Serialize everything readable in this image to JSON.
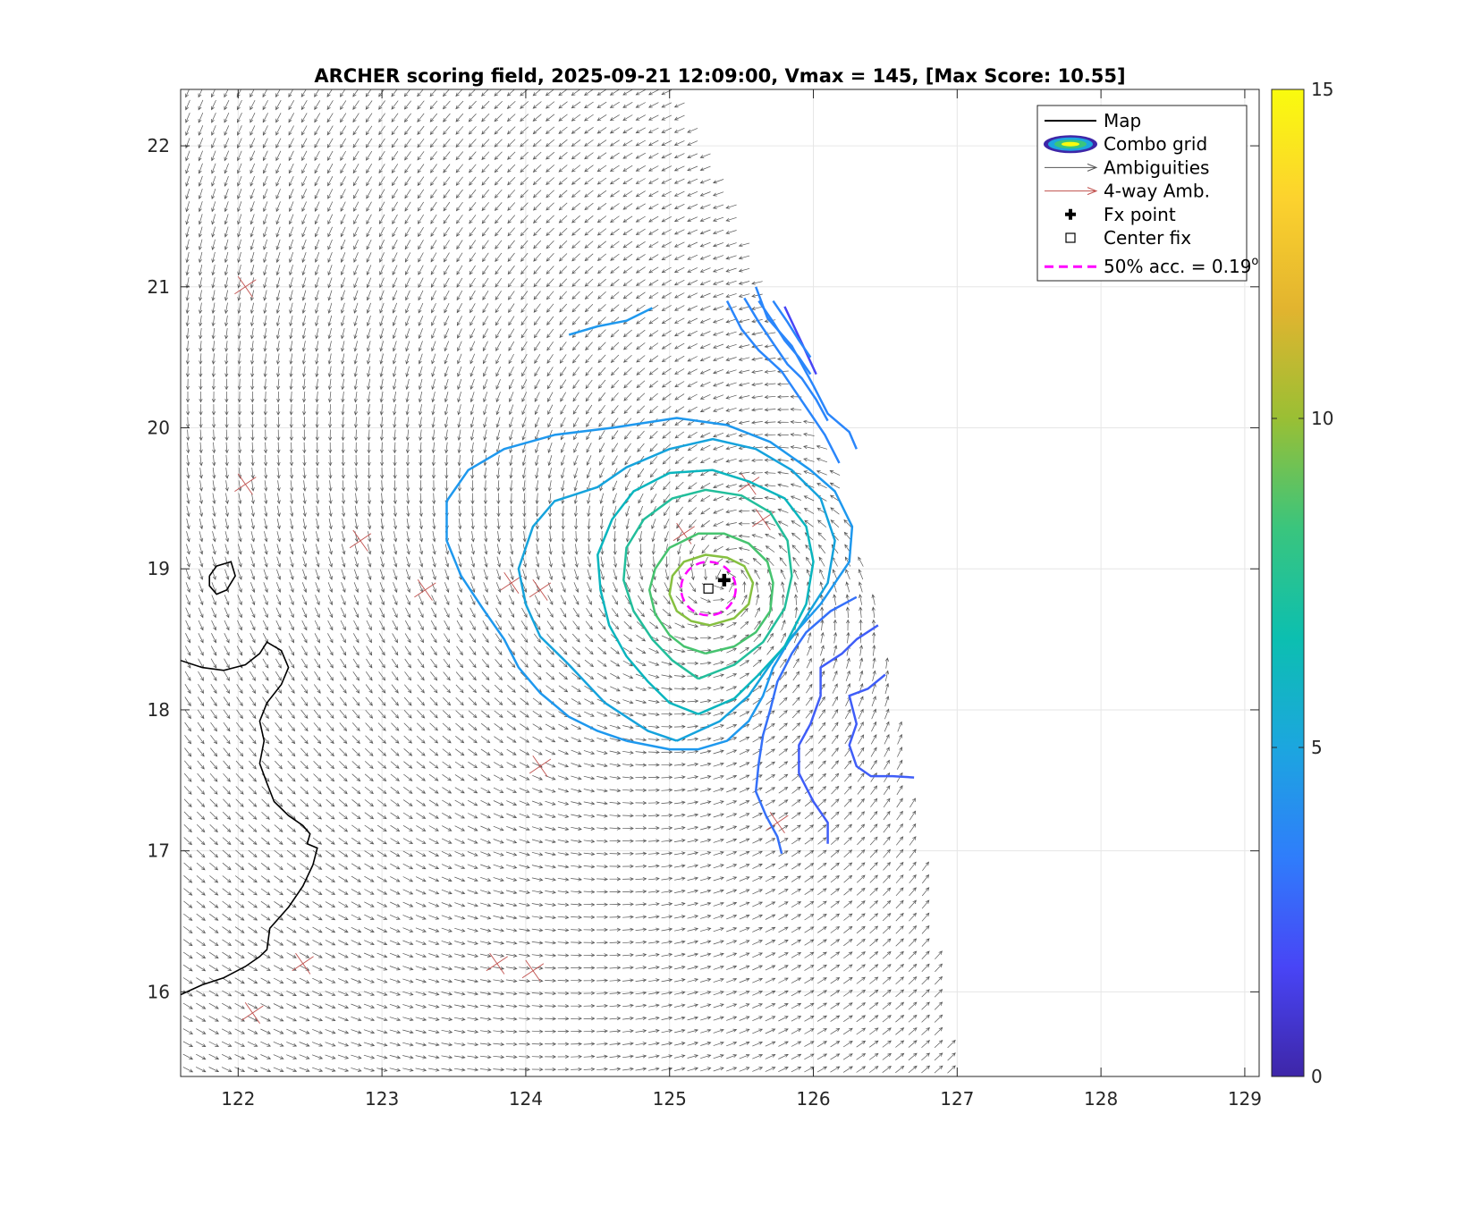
{
  "chart_data": {
    "type": "contour+quiver",
    "title": "ARCHER scoring field, 2025-09-21 12:09:00, Vmax = 145, [Max Score: 10.55]",
    "xlim": [
      121.6,
      129.1
    ],
    "ylim": [
      15.4,
      22.4
    ],
    "x_ticks": [
      "122",
      "123",
      "124",
      "125",
      "126",
      "127",
      "128",
      "129"
    ],
    "y_ticks": [
      "16",
      "17",
      "18",
      "19",
      "20",
      "21",
      "22"
    ],
    "grid": true,
    "legend_position": "top-right",
    "legend": [
      {
        "label": "Map",
        "kind": "line",
        "color": "#000000"
      },
      {
        "label": "Combo grid",
        "kind": "ellipse",
        "color": "#3b2ad6"
      },
      {
        "label": "Ambiguities",
        "kind": "arrow",
        "color": "#555555"
      },
      {
        "label": "4-way Amb.",
        "kind": "arrow",
        "color": "#c0504d"
      },
      {
        "label": "Fx point",
        "kind": "plus",
        "color": "#000000"
      },
      {
        "label": "Center fix",
        "kind": "square",
        "color": "#000000"
      },
      {
        "label": "50% acc. = 0.19",
        "sup": "o",
        "kind": "dashed",
        "color": "#ff00ff"
      }
    ],
    "colorbar": {
      "range": [
        0,
        15
      ],
      "ticks": [
        "0",
        "5",
        "10",
        "15"
      ],
      "colormap": [
        "#3e26a8",
        "#4845f6",
        "#2f7dfb",
        "#1ca6df",
        "#0cbfb0",
        "#3ac57d",
        "#9abf34",
        "#e2b42f",
        "#fcd22e",
        "#f9fb0e"
      ]
    },
    "fx_point": {
      "lon": 125.38,
      "lat": 18.92
    },
    "center_fix": {
      "lon": 125.27,
      "lat": 18.86
    },
    "accuracy_circle_radius_deg": 0.19,
    "contours": [
      {
        "level": 2.5,
        "color": "#4845f6",
        "points": [
          [
            125.8,
            20.86
          ],
          [
            125.92,
            20.6
          ],
          [
            126.02,
            20.38
          ]
        ]
      },
      {
        "level": 3.0,
        "color": "#3f5df8",
        "points": [
          [
            126.7,
            17.52
          ],
          [
            126.55,
            17.53
          ],
          [
            126.4,
            17.53
          ],
          [
            126.3,
            17.6
          ],
          [
            126.25,
            17.75
          ],
          [
            126.3,
            17.9
          ],
          [
            126.25,
            18.1
          ],
          [
            126.38,
            18.15
          ],
          [
            126.5,
            18.25
          ]
        ]
      },
      {
        "level": 3.2,
        "color": "#3f5df8",
        "points": [
          [
            126.45,
            18.6
          ],
          [
            126.3,
            18.5
          ],
          [
            126.2,
            18.4
          ],
          [
            126.05,
            18.3
          ],
          [
            126.05,
            18.1
          ],
          [
            125.98,
            17.9
          ],
          [
            125.9,
            17.75
          ],
          [
            125.9,
            17.55
          ],
          [
            126.0,
            17.35
          ],
          [
            126.1,
            17.2
          ],
          [
            126.1,
            17.05
          ]
        ]
      },
      {
        "level": 3.5,
        "color": "#3570f9",
        "points": [
          [
            126.3,
            18.8
          ],
          [
            126.12,
            18.7
          ],
          [
            125.95,
            18.55
          ],
          [
            125.85,
            18.4
          ],
          [
            125.75,
            18.2
          ],
          [
            125.7,
            18.0
          ],
          [
            125.65,
            17.82
          ],
          [
            125.62,
            17.62
          ],
          [
            125.6,
            17.42
          ],
          [
            125.67,
            17.25
          ],
          [
            125.75,
            17.1
          ],
          [
            125.78,
            16.98
          ]
        ]
      },
      {
        "level": 4.0,
        "color": "#2a86fb",
        "points": [
          [
            125.4,
            20.9
          ],
          [
            125.5,
            20.7
          ],
          [
            125.62,
            20.55
          ],
          [
            125.78,
            20.4
          ],
          [
            125.88,
            20.25
          ],
          [
            125.98,
            20.1
          ],
          [
            126.08,
            19.95
          ],
          [
            126.18,
            19.75
          ]
        ]
      },
      {
        "level": 4.2,
        "color": "#2a86fb",
        "points": [
          [
            125.52,
            20.92
          ],
          [
            125.62,
            20.75
          ],
          [
            125.72,
            20.6
          ],
          [
            125.82,
            20.45
          ],
          [
            125.92,
            20.35
          ],
          [
            126.02,
            20.2
          ],
          [
            126.1,
            20.05
          ]
        ]
      },
      {
        "level": 4.4,
        "color": "#2a86fb",
        "points": [
          [
            125.62,
            20.9
          ],
          [
            125.72,
            20.75
          ],
          [
            125.8,
            20.62
          ],
          [
            125.9,
            20.5
          ],
          [
            125.98,
            20.38
          ]
        ]
      },
      {
        "level": 4.6,
        "color": "#2a86fb",
        "points": [
          [
            125.72,
            20.9
          ],
          [
            125.82,
            20.75
          ],
          [
            125.9,
            20.62
          ],
          [
            125.98,
            20.5
          ]
        ]
      },
      {
        "level": 4.8,
        "color": "#2a86fb",
        "points": [
          [
            125.6,
            21.0
          ],
          [
            125.68,
            20.78
          ],
          [
            125.85,
            20.58
          ],
          [
            126.0,
            20.3
          ],
          [
            126.1,
            20.1
          ],
          [
            126.25,
            19.97
          ],
          [
            126.3,
            19.85
          ]
        ]
      },
      {
        "level": 5.0,
        "color": "#1e98ee",
        "points": [
          [
            124.3,
            20.66
          ],
          [
            124.5,
            20.72
          ],
          [
            124.7,
            20.76
          ],
          [
            124.88,
            20.85
          ]
        ]
      },
      {
        "level": 5.2,
        "color": "#1e98ee",
        "points": [
          [
            124.7,
            17.78
          ],
          [
            125.0,
            17.72
          ],
          [
            125.2,
            17.72
          ],
          [
            125.4,
            17.78
          ],
          [
            125.55,
            17.92
          ],
          [
            125.65,
            18.1
          ],
          [
            125.72,
            18.3
          ],
          [
            125.85,
            18.52
          ],
          [
            126.05,
            18.75
          ],
          [
            126.25,
            19.05
          ],
          [
            126.27,
            19.3
          ],
          [
            126.15,
            19.55
          ],
          [
            125.98,
            19.7
          ],
          [
            125.7,
            19.9
          ],
          [
            125.4,
            20.02
          ],
          [
            125.05,
            20.07
          ],
          [
            124.6,
            20.0
          ],
          [
            124.2,
            19.95
          ],
          [
            123.85,
            19.85
          ],
          [
            123.6,
            19.7
          ],
          [
            123.45,
            19.48
          ],
          [
            123.45,
            19.2
          ],
          [
            123.55,
            18.95
          ],
          [
            123.7,
            18.72
          ],
          [
            123.85,
            18.5
          ],
          [
            123.95,
            18.3
          ],
          [
            124.1,
            18.12
          ],
          [
            124.3,
            17.95
          ],
          [
            124.5,
            17.85
          ],
          [
            124.7,
            17.78
          ]
        ]
      },
      {
        "level": 6.0,
        "color": "#15a3dc",
        "points": [
          [
            125.05,
            17.78
          ],
          [
            125.35,
            17.92
          ],
          [
            125.55,
            18.1
          ],
          [
            125.72,
            18.35
          ],
          [
            125.88,
            18.55
          ],
          [
            126.1,
            18.9
          ],
          [
            126.15,
            19.2
          ],
          [
            126.05,
            19.5
          ],
          [
            125.85,
            19.7
          ],
          [
            125.6,
            19.85
          ],
          [
            125.3,
            19.92
          ],
          [
            125.0,
            19.85
          ],
          [
            124.7,
            19.72
          ],
          [
            124.5,
            19.58
          ],
          [
            124.2,
            19.48
          ],
          [
            124.05,
            19.3
          ],
          [
            123.95,
            19.0
          ],
          [
            124.0,
            18.75
          ],
          [
            124.1,
            18.52
          ],
          [
            124.3,
            18.32
          ],
          [
            124.55,
            18.05
          ],
          [
            124.85,
            17.85
          ],
          [
            125.05,
            17.78
          ]
        ]
      },
      {
        "level": 7.0,
        "color": "#09b5be",
        "points": [
          [
            125.2,
            17.97
          ],
          [
            125.45,
            18.08
          ],
          [
            125.62,
            18.25
          ],
          [
            125.8,
            18.45
          ],
          [
            125.95,
            18.75
          ],
          [
            126.0,
            19.05
          ],
          [
            125.95,
            19.3
          ],
          [
            125.8,
            19.5
          ],
          [
            125.55,
            19.62
          ],
          [
            125.3,
            19.7
          ],
          [
            125.0,
            19.68
          ],
          [
            124.75,
            19.55
          ],
          [
            124.6,
            19.35
          ],
          [
            124.5,
            19.1
          ],
          [
            124.52,
            18.85
          ],
          [
            124.58,
            18.6
          ],
          [
            124.7,
            18.38
          ],
          [
            124.85,
            18.2
          ],
          [
            125.0,
            18.05
          ],
          [
            125.2,
            17.97
          ]
        ]
      },
      {
        "level": 8.0,
        "color": "#22be9b",
        "points": [
          [
            125.2,
            18.22
          ],
          [
            125.45,
            18.32
          ],
          [
            125.65,
            18.48
          ],
          [
            125.8,
            18.72
          ],
          [
            125.85,
            18.95
          ],
          [
            125.82,
            19.2
          ],
          [
            125.7,
            19.4
          ],
          [
            125.5,
            19.52
          ],
          [
            125.25,
            19.56
          ],
          [
            125.02,
            19.5
          ],
          [
            124.82,
            19.35
          ],
          [
            124.7,
            19.15
          ],
          [
            124.68,
            18.92
          ],
          [
            124.75,
            18.7
          ],
          [
            124.88,
            18.5
          ],
          [
            125.02,
            18.35
          ],
          [
            125.2,
            18.22
          ]
        ]
      },
      {
        "level": 9.0,
        "color": "#46c36f",
        "points": [
          [
            125.25,
            18.4
          ],
          [
            125.45,
            18.45
          ],
          [
            125.6,
            18.55
          ],
          [
            125.7,
            18.7
          ],
          [
            125.72,
            18.9
          ],
          [
            125.68,
            19.05
          ],
          [
            125.55,
            19.18
          ],
          [
            125.38,
            19.25
          ],
          [
            125.2,
            19.25
          ],
          [
            125.0,
            19.15
          ],
          [
            124.9,
            19.0
          ],
          [
            124.86,
            18.85
          ],
          [
            124.9,
            18.68
          ],
          [
            125.0,
            18.53
          ],
          [
            125.1,
            18.45
          ],
          [
            125.25,
            18.4
          ]
        ]
      },
      {
        "level": 10.0,
        "color": "#86c040",
        "points": [
          [
            125.28,
            18.6
          ],
          [
            125.45,
            18.65
          ],
          [
            125.55,
            18.75
          ],
          [
            125.58,
            18.9
          ],
          [
            125.52,
            19.02
          ],
          [
            125.4,
            19.08
          ],
          [
            125.25,
            19.1
          ],
          [
            125.1,
            19.05
          ],
          [
            125.02,
            18.95
          ],
          [
            125.0,
            18.82
          ],
          [
            125.05,
            18.7
          ],
          [
            125.15,
            18.63
          ],
          [
            125.28,
            18.6
          ]
        ]
      }
    ],
    "coastline": [
      [
        [
          121.6,
          18.35
        ],
        [
          121.75,
          18.3
        ],
        [
          121.9,
          18.28
        ],
        [
          122.05,
          18.32
        ],
        [
          122.15,
          18.4
        ],
        [
          122.2,
          18.48
        ],
        [
          122.3,
          18.42
        ],
        [
          122.35,
          18.3
        ],
        [
          122.3,
          18.18
        ],
        [
          122.2,
          18.05
        ],
        [
          122.15,
          17.92
        ],
        [
          122.18,
          17.78
        ],
        [
          122.15,
          17.62
        ],
        [
          122.2,
          17.48
        ],
        [
          122.25,
          17.35
        ],
        [
          122.35,
          17.25
        ],
        [
          122.45,
          17.18
        ],
        [
          122.5,
          17.12
        ],
        [
          122.48,
          17.05
        ],
        [
          122.55,
          17.02
        ],
        [
          122.52,
          16.9
        ],
        [
          122.45,
          16.75
        ],
        [
          122.35,
          16.6
        ],
        [
          122.22,
          16.45
        ],
        [
          122.2,
          16.3
        ],
        [
          122.15,
          16.25
        ],
        [
          122.05,
          16.18
        ],
        [
          121.9,
          16.1
        ],
        [
          121.75,
          16.05
        ],
        [
          121.6,
          15.98
        ]
      ],
      [
        [
          121.8,
          18.95
        ],
        [
          121.85,
          19.02
        ],
        [
          121.95,
          19.05
        ],
        [
          121.98,
          18.95
        ],
        [
          121.92,
          18.85
        ],
        [
          121.85,
          18.82
        ],
        [
          121.8,
          18.88
        ],
        [
          121.8,
          18.95
        ]
      ]
    ]
  }
}
